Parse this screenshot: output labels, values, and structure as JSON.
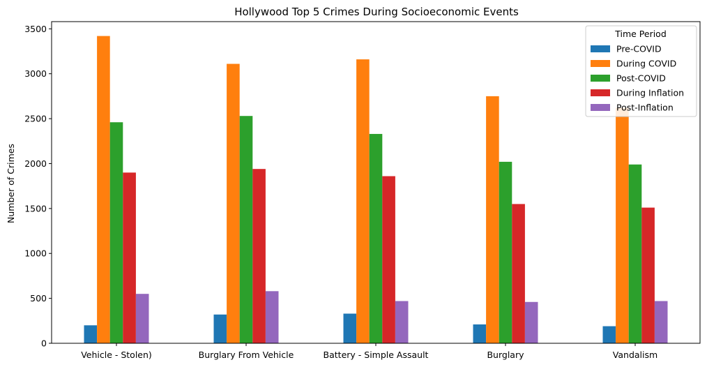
{
  "chart_data": {
    "type": "bar",
    "title": "Hollywood Top 5 Crimes During Socioeconomic Events",
    "xlabel": "",
    "ylabel": "Number of Crimes",
    "ylim": [
      0,
      3580
    ],
    "yticks": [
      0,
      500,
      1000,
      1500,
      2000,
      2500,
      3000,
      3500
    ],
    "grid": false,
    "legend": {
      "title": "Time Period",
      "position": "top-right"
    },
    "categories": [
      "Vehicle - Stolen)",
      "Burglary From Vehicle",
      "Battery - Simple Assault",
      "Burglary",
      "Vandalism"
    ],
    "series": [
      {
        "name": "Pre-COVID",
        "color": "#1f77b4",
        "values": [
          200,
          320,
          330,
          210,
          190
        ]
      },
      {
        "name": "During COVID",
        "color": "#ff7f0e",
        "values": [
          3420,
          3110,
          3160,
          2750,
          2620
        ]
      },
      {
        "name": "Post-COVID",
        "color": "#2ca02c",
        "values": [
          2460,
          2530,
          2330,
          2020,
          1990
        ]
      },
      {
        "name": "During Inflation",
        "color": "#d62728",
        "values": [
          1900,
          1940,
          1860,
          1550,
          1510
        ]
      },
      {
        "name": "Post-Inflation",
        "color": "#9467bd",
        "values": [
          550,
          580,
          470,
          460,
          470
        ]
      }
    ]
  }
}
